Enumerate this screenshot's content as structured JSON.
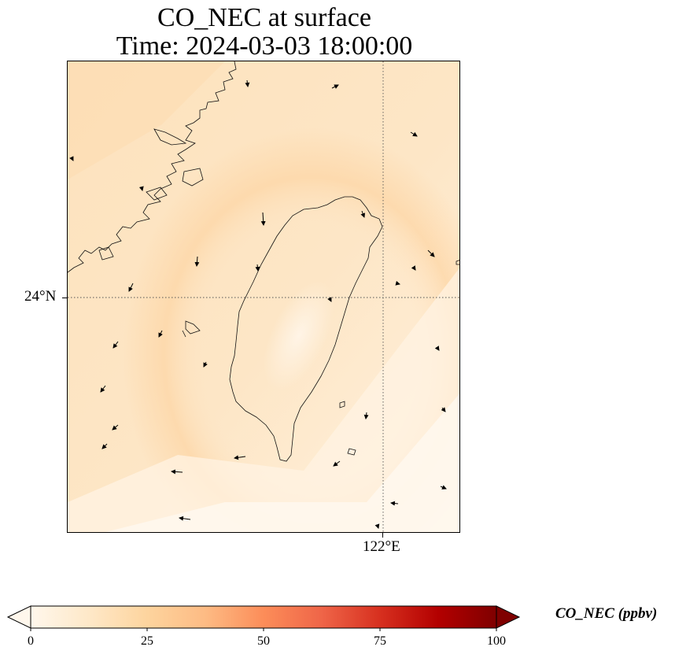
{
  "title": {
    "line1": "CO_NEC at surface",
    "line2": "Time: 2024-03-03 18:00:00"
  },
  "map": {
    "lat_label": "24°N",
    "lon_label": "122°E",
    "lat_gridline": 24,
    "lon_gridline": 122,
    "field_colors": {
      "low": "#fff3e2",
      "mid": "#fee0bb",
      "high": "#fdd09e"
    }
  },
  "colorbar": {
    "title": "CO_NEC (ppbv)",
    "ticks": [
      "0",
      "25",
      "50",
      "75",
      "100"
    ],
    "min": 0,
    "max": 100,
    "extend": "both",
    "colormap": "Oranges-Reds",
    "stops": [
      "#fff7ec",
      "#fee8c8",
      "#fdd49e",
      "#fdbb84",
      "#fc8d59",
      "#ef6548",
      "#d7301f",
      "#b30000",
      "#7f0000"
    ]
  },
  "chart_data": {
    "type": "heatmap",
    "title": "CO_NEC at surface\nTime: 2024-03-03 18:00:00",
    "variable": "CO_NEC",
    "units": "ppbv",
    "value_range": [
      0,
      100
    ],
    "field_estimate_range_ppbv": [
      2,
      20
    ],
    "overlay": "wind vectors",
    "coastlines": true,
    "grid": "dotted"
  }
}
